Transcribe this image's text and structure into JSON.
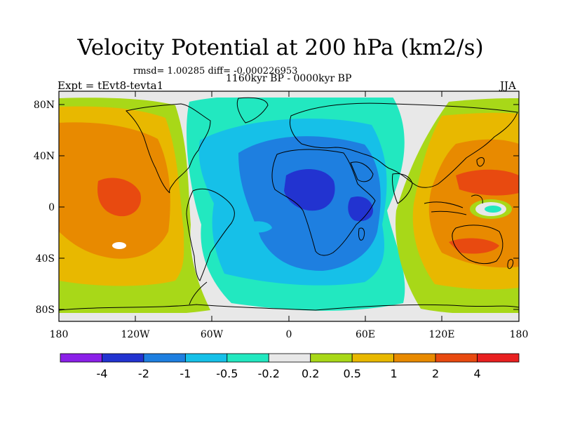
{
  "title": "Velocity Potential at 200 hPa (km2/s)",
  "stats": "rmsd= 1.00285 diff= -0.000226953",
  "period": "1160kyr BP - 0000kyr BP",
  "experiment": "Expt = tEvt8-tevta1",
  "season": "JJA",
  "lat_ticks": [
    "80N",
    "40N",
    "0",
    "40S",
    "80S"
  ],
  "lon_ticks": [
    "180",
    "120W",
    "60W",
    "0",
    "60E",
    "120E",
    "180"
  ],
  "colorbar": {
    "colors": [
      "#8B20E8",
      "#2233D0",
      "#1E7FE0",
      "#16C0E8",
      "#22E8C0",
      "#E8E8E8",
      "#A8D818",
      "#E8B800",
      "#E88A00",
      "#E84A10",
      "#E82020"
    ],
    "labels": [
      "-4",
      "-2",
      "-1",
      "-0.5",
      "-0.2",
      "0.2",
      "0.5",
      "1",
      "2",
      "4"
    ]
  },
  "map_data": {
    "type": "contour-fill",
    "variable": "Velocity Potential at 200 hPa",
    "units": "km2/s",
    "lon_range": [
      -180,
      180
    ],
    "lat_range": [
      -90,
      90
    ],
    "features": [
      {
        "name": "negative-center-west-africa",
        "lon": 10,
        "lat": 15,
        "value": "-2 to -4"
      },
      {
        "name": "negative-center-east-africa",
        "lon": 55,
        "lat": 0,
        "value": "-2 to -4"
      },
      {
        "name": "positive-center-central-pacific",
        "lon": -150,
        "lat": 10,
        "value": "2 to 4"
      },
      {
        "name": "positive-center-west-pacific",
        "lon": 135,
        "lat": 20,
        "value": "2"
      }
    ]
  }
}
